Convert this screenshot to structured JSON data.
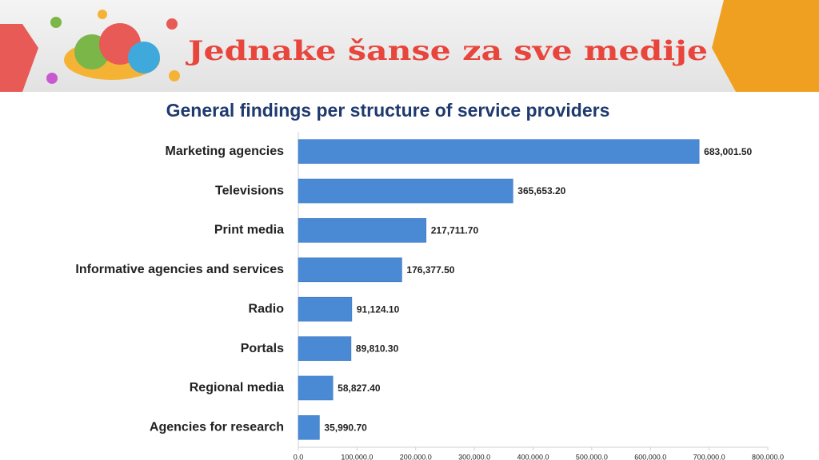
{
  "header": {
    "banner_title": "Jednake šanse za sve medije"
  },
  "chart_data": {
    "type": "bar",
    "orientation": "horizontal",
    "title": "General findings per structure of service providers",
    "categories": [
      "Marketing agencies",
      "Televisions",
      "Print media",
      "Informative agencies and services",
      "Radio",
      "Portals",
      "Regional media",
      "Agencies for research"
    ],
    "values": [
      683001.5,
      365653.2,
      217711.7,
      176377.5,
      91124.1,
      89810.3,
      58827.4,
      35990.7
    ],
    "value_labels": [
      "683,001.50",
      "365,653.20",
      "217,711.70",
      "176,377.50",
      "91,124.10",
      "89,810.30",
      "58,827.40",
      "35,990.70"
    ],
    "color": "#4a89d4",
    "xlim": [
      0,
      800000
    ],
    "xticks": [
      {
        "value": 0,
        "label": "0.0"
      },
      {
        "value": 100000,
        "label": "100,000.0"
      },
      {
        "value": 200000,
        "label": "200,000.0"
      },
      {
        "value": 300000,
        "label": "300,000.0"
      },
      {
        "value": 400000,
        "label": "400,000.0"
      },
      {
        "value": 500000,
        "label": "500,000.0"
      },
      {
        "value": 600000,
        "label": "600,000.0"
      },
      {
        "value": 700000,
        "label": "700,000.0"
      },
      {
        "value": 800000,
        "label": "800,000.0"
      }
    ],
    "grid": false
  }
}
